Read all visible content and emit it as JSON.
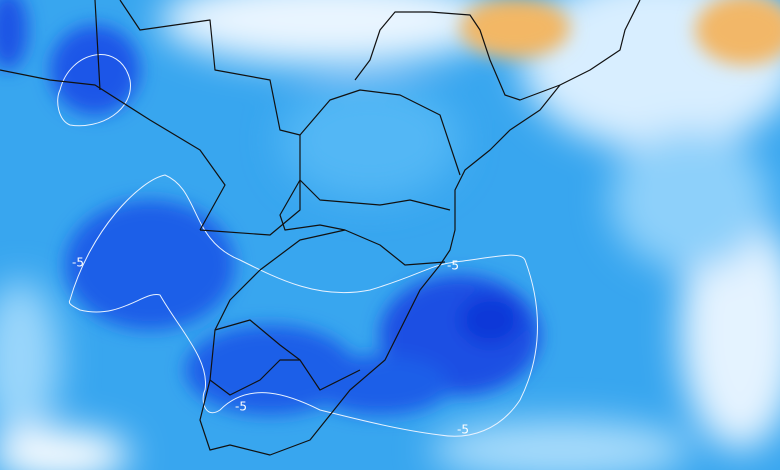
{
  "contour_labels": [
    "-5",
    "-5",
    "-5",
    "-5"
  ]
}
